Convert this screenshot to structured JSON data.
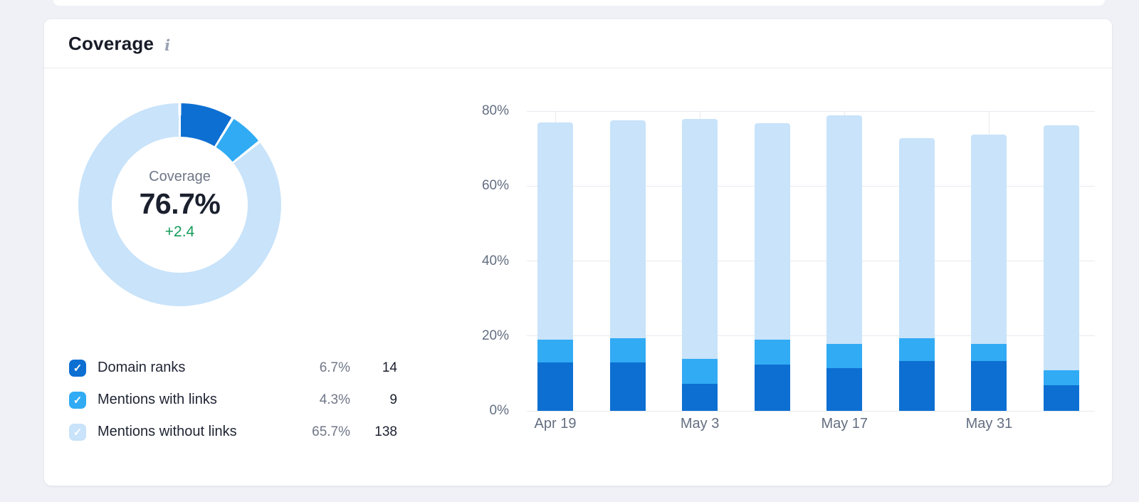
{
  "card": {
    "title": "Coverage",
    "info_glyph": "i"
  },
  "donut_center": {
    "label": "Coverage",
    "value": "76.7%",
    "trend": "+2.4"
  },
  "legend": {
    "items": [
      {
        "label": "Domain ranks",
        "percent": "6.7%",
        "count": "14",
        "color": "#0d6fd2"
      },
      {
        "label": "Mentions with links",
        "percent": "4.3%",
        "count": "9",
        "color": "#31abf4"
      },
      {
        "label": "Mentions without links",
        "percent": "65.7%",
        "count": "138",
        "color": "#c8e3fa"
      }
    ]
  },
  "colors": {
    "dark_blue": "#0d6fd2",
    "bright_blue": "#31abf4",
    "pale_blue": "#c8e3fa",
    "trend_green": "#149b59",
    "axis_text": "#636e80",
    "grid": "#e8eaef"
  },
  "chart_data": [
    {
      "type": "pie",
      "subtype": "donut",
      "title": "Coverage",
      "center_label": "Coverage",
      "center_value": "76.7%",
      "center_trend": "+2.4",
      "total": 76.7,
      "segments": [
        {
          "name": "Domain ranks",
          "value": 6.7,
          "color": "#0d6fd2"
        },
        {
          "name": "Mentions with links",
          "value": 4.3,
          "color": "#31abf4"
        },
        {
          "name": "Mentions without links",
          "value": 65.7,
          "color": "#c8e3fa"
        }
      ]
    },
    {
      "type": "bar",
      "stacked": true,
      "ylim": [
        0,
        80
      ],
      "grid": true,
      "y_ticks": [
        {
          "value": 0,
          "label": "0%"
        },
        {
          "value": 20,
          "label": "20%"
        },
        {
          "value": 40,
          "label": "40%"
        },
        {
          "value": 60,
          "label": "60%"
        },
        {
          "value": 80,
          "label": "80%"
        }
      ],
      "x_ticks": [
        {
          "bar_index": 0,
          "label": "Apr 19"
        },
        {
          "bar_index": 2,
          "label": "May 3"
        },
        {
          "bar_index": 4,
          "label": "May 17"
        },
        {
          "bar_index": 6,
          "label": "May 31"
        }
      ],
      "series": [
        {
          "name": "Domain ranks",
          "color": "#0d6fd2",
          "values": [
            12.9,
            12.9,
            7.2,
            12.4,
            11.4,
            13.3,
            13.3,
            6.8
          ]
        },
        {
          "name": "Mentions with links",
          "color": "#31abf4",
          "values": [
            6.1,
            6.5,
            6.7,
            6.6,
            6.5,
            6.1,
            4.6,
            4.0
          ]
        },
        {
          "name": "Mentions without links",
          "color": "#c8e3fa",
          "values": [
            58.0,
            58.2,
            64.0,
            57.8,
            61.0,
            53.4,
            55.9,
            65.4
          ]
        }
      ],
      "totals": [
        77.0,
        77.6,
        77.9,
        76.8,
        78.9,
        72.8,
        73.8,
        76.2
      ]
    }
  ]
}
